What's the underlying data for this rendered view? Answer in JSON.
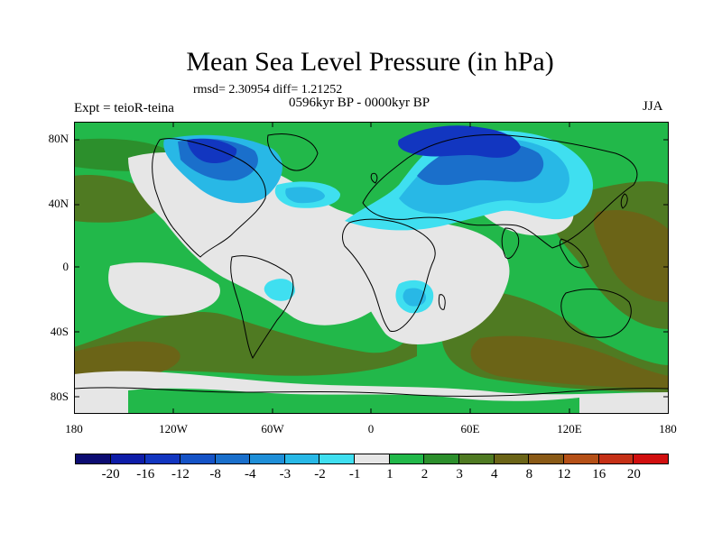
{
  "title": "Mean Sea Level Pressure (in hPa)",
  "stats": "rmsd= 2.30954 diff= 1.21252",
  "experiment": "Expt = teioR-teina",
  "period": "0596kyr BP - 0000kyr BP",
  "season": "JJA",
  "lat_labels": [
    "80N",
    "40N",
    "0",
    "40S",
    "80S"
  ],
  "lon_labels": [
    "180",
    "120W",
    "60W",
    "0",
    "60E",
    "120E",
    "180"
  ],
  "colorbar": {
    "labels": [
      "-20",
      "-16",
      "-12",
      "-8",
      "-4",
      "-3",
      "-2",
      "-1",
      "1",
      "2",
      "3",
      "4",
      "8",
      "12",
      "16",
      "20"
    ],
    "colors": [
      "#0c0c72",
      "#0e1da8",
      "#1236c0",
      "#1553c6",
      "#1a6fcb",
      "#1f8fd8",
      "#28b8e6",
      "#3fdff0",
      "#e6e6e6",
      "#22b84a",
      "#2c8f2c",
      "#4f7a22",
      "#6b6417",
      "#8a5a16",
      "#b55017",
      "#c53016",
      "#d10f0f"
    ]
  },
  "colors": {
    "neutral": "#e6e6e6",
    "green": "#22b84a",
    "dark_green": "#2c8f2c",
    "olive": "#4f7a22",
    "brown": "#6b6417",
    "light_cyan": "#3fdff0",
    "cyan": "#28b8e6",
    "blue": "#1a6fcb",
    "dark_blue": "#1236c0"
  }
}
